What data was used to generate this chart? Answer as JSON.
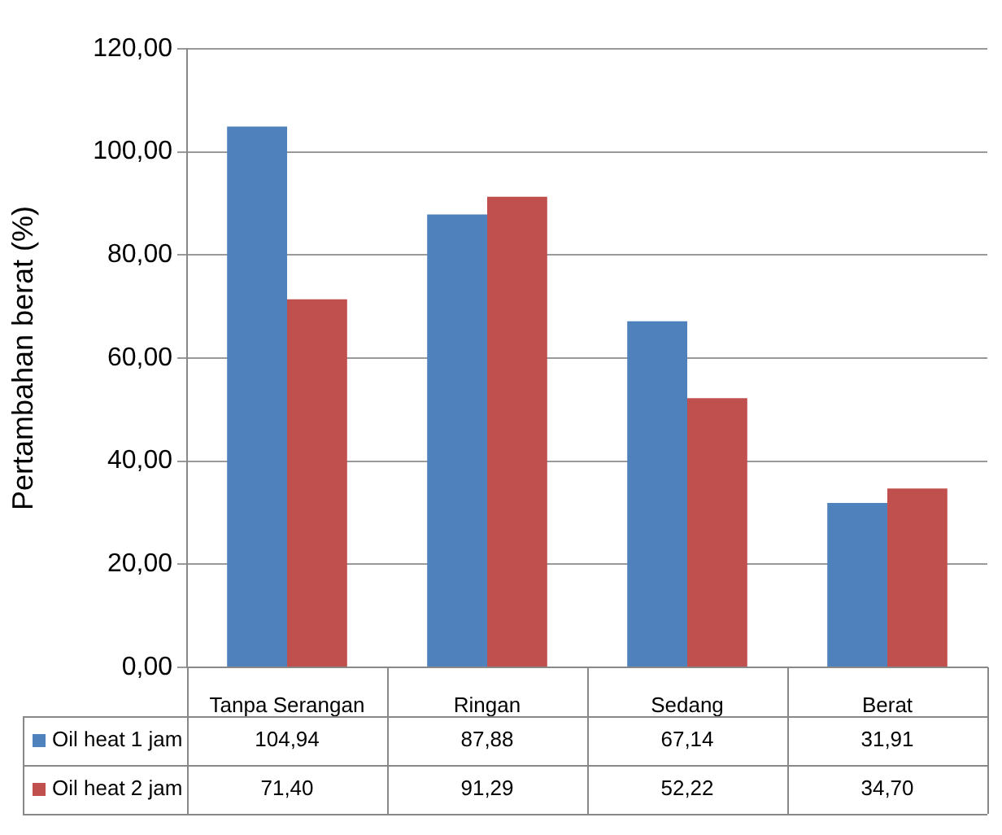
{
  "chart_data": {
    "type": "bar",
    "categories": [
      "Tanpa Serangan",
      "Ringan",
      "Sedang",
      "Berat"
    ],
    "ylabel": "Pertambahan berat (%)",
    "ylim": [
      0,
      120
    ],
    "yticks": [
      {
        "value": 0,
        "label": "0,00"
      },
      {
        "value": 20,
        "label": "20,00"
      },
      {
        "value": 40,
        "label": "40,00"
      },
      {
        "value": 60,
        "label": "60,00"
      },
      {
        "value": 80,
        "label": "80,00"
      },
      {
        "value": 100,
        "label": "100,00"
      },
      {
        "value": 120,
        "label": "120,00"
      }
    ],
    "grid": "y",
    "legend": "bottom",
    "series": [
      {
        "name": "Oil heat 1 jam",
        "color": "#4f81bd",
        "values": [
          104.94,
          87.88,
          67.14,
          31.91
        ],
        "value_labels": [
          "104,94",
          "87,88",
          "67,14",
          "31,91"
        ]
      },
      {
        "name": "Oil heat 2 jam",
        "color": "#c0504d",
        "values": [
          71.4,
          91.29,
          52.22,
          34.7
        ],
        "value_labels": [
          "71,40",
          "91,29",
          "52,22",
          "34,70"
        ]
      }
    ]
  }
}
